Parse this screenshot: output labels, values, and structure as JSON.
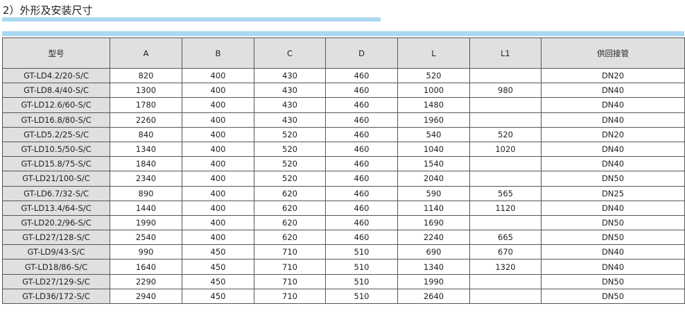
{
  "title": "2）外形及安装尺寸",
  "colors": {
    "accent_bar": "#a9d9f2",
    "header_bg": "#e0e0e0"
  },
  "table": {
    "headers": [
      "型号",
      "A",
      "B",
      "C",
      "D",
      "L",
      "L1",
      "供回接管"
    ],
    "rows": [
      [
        "GT-LD4.2/20-S/C",
        "820",
        "400",
        "430",
        "460",
        "520",
        "",
        "DN20"
      ],
      [
        "GT-LD8.4/40-S/C",
        "1300",
        "400",
        "430",
        "460",
        "1000",
        "980",
        "DN40"
      ],
      [
        "GT-LD12.6/60-S/C",
        "1780",
        "400",
        "430",
        "460",
        "1480",
        "",
        "DN40"
      ],
      [
        "GT-LD16.8/80-S/C",
        "2260",
        "400",
        "430",
        "460",
        "1960",
        "",
        "DN40"
      ],
      [
        "GT-LD5.2/25-S/C",
        "840",
        "400",
        "520",
        "460",
        "540",
        "520",
        "DN20"
      ],
      [
        "GT-LD10.5/50-S/C",
        "1340",
        "400",
        "520",
        "460",
        "1040",
        "1020",
        "DN40"
      ],
      [
        "GT-LD15.8/75-S/C",
        "1840",
        "400",
        "520",
        "460",
        "1540",
        "",
        "DN40"
      ],
      [
        "GT-LD21/100-S/C",
        "2340",
        "400",
        "520",
        "460",
        "2040",
        "",
        "DN50"
      ],
      [
        "GT-LD6.7/32-S/C",
        "890",
        "400",
        "620",
        "460",
        "590",
        "565",
        "DN25"
      ],
      [
        "GT-LD13.4/64-S/C",
        "1440",
        "400",
        "620",
        "460",
        "1140",
        "1120",
        "DN40"
      ],
      [
        "GT-LD20.2/96-S/C",
        "1990",
        "400",
        "620",
        "460",
        "1690",
        "",
        "DN50"
      ],
      [
        "GT-LD27/128-S/C",
        "2540",
        "400",
        "620",
        "460",
        "2240",
        "665",
        "DN50"
      ],
      [
        "GT-LD9/43-S/C",
        "990",
        "450",
        "710",
        "510",
        "690",
        "670",
        "DN40"
      ],
      [
        "GT-LD18/86-S/C",
        "1640",
        "450",
        "710",
        "510",
        "1340",
        "1320",
        "DN40"
      ],
      [
        "GT-LD27/129-S/C",
        "2290",
        "450",
        "710",
        "510",
        "1990",
        "",
        "DN50"
      ],
      [
        "GT-LD36/172-S/C",
        "2940",
        "450",
        "710",
        "510",
        "2640",
        "",
        "DN50"
      ]
    ]
  }
}
